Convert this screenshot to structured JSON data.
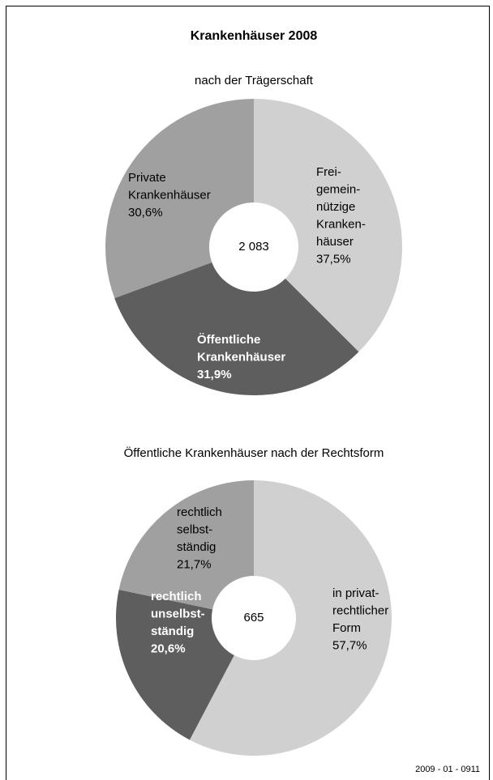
{
  "chart_data": [
    {
      "type": "donut",
      "title": "Krankenhäuser 2008",
      "subtitle": "nach der Trägerschaft",
      "total": {
        "value": 2083,
        "label": "2 083"
      },
      "categories": [
        [
          "Frei-",
          "gemein-",
          "nützige",
          "Kranken-",
          "häuser"
        ],
        [
          "Öffentliche",
          "Krankenhäuser"
        ],
        [
          "Private",
          "Krankenhäuser"
        ]
      ],
      "values": [
        37.5,
        31.9,
        30.6
      ],
      "value_labels": [
        "37,5%",
        "31,9%",
        "30,6%"
      ],
      "colors": [
        "#d0d0d0",
        "#5e5e5e",
        "#a0a0a0"
      ]
    },
    {
      "type": "donut",
      "subtitle": "Öffentliche Krankenhäuser nach der Rechtsform",
      "total": {
        "value": 665,
        "label": "665"
      },
      "categories": [
        [
          "in privat-",
          "rechtlicher",
          "Form"
        ],
        [
          "rechtlich",
          "unselbst-",
          "ständig"
        ],
        [
          "rechtlich",
          "selbst-",
          "ständig"
        ]
      ],
      "values": [
        57.7,
        20.6,
        21.7
      ],
      "value_labels": [
        "57,7%",
        "20,6%",
        "21,7%"
      ],
      "colors": [
        "#d0d0d0",
        "#5e5e5e",
        "#a0a0a0"
      ]
    }
  ],
  "footer": "2009 - 01 - 0911"
}
